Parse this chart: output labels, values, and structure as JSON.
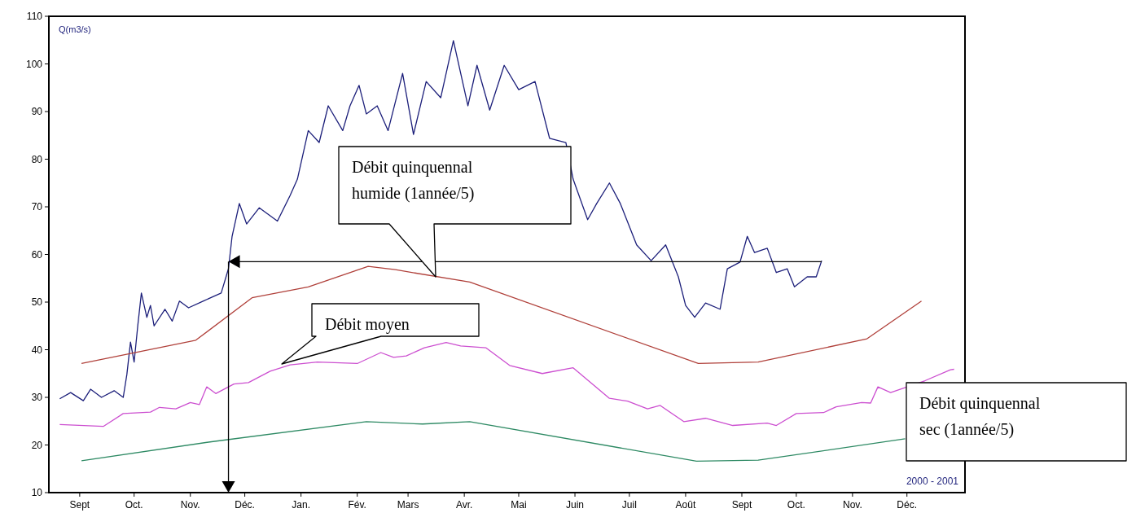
{
  "chart_data": {
    "type": "line",
    "ylabel": "Q(m3/s)",
    "ylim": [
      10,
      110
    ],
    "yticks": [
      10,
      20,
      30,
      40,
      50,
      60,
      70,
      80,
      90,
      100,
      110
    ],
    "xlim": [
      "2000-08-29",
      "2002-01-16"
    ],
    "xticks": [
      {
        "value": "2000-09-15",
        "label": "Sept"
      },
      {
        "value": "2000-10-15",
        "label": "Oct."
      },
      {
        "value": "2000-11-15",
        "label": "Nov."
      },
      {
        "value": "2000-12-15",
        "label": "Déc."
      },
      {
        "value": "2001-01-15",
        "label": "Jan."
      },
      {
        "value": "2001-02-15",
        "label": "Fév."
      },
      {
        "value": "2001-03-15",
        "label": "Mars"
      },
      {
        "value": "2001-04-15",
        "label": "Avr."
      },
      {
        "value": "2001-05-15",
        "label": "Mai"
      },
      {
        "value": "2001-06-15",
        "label": "Juin"
      },
      {
        "value": "2001-07-15",
        "label": "Juil"
      },
      {
        "value": "2001-08-15",
        "label": "Août"
      },
      {
        "value": "2001-09-15",
        "label": "Sept"
      },
      {
        "value": "2001-10-15",
        "label": "Oct."
      },
      {
        "value": "2001-11-15",
        "label": "Nov."
      },
      {
        "value": "2001-12-15",
        "label": "Déc."
      }
    ],
    "grid": false,
    "series": [
      {
        "name": "2000 - 2001",
        "color": "#1c1f7a",
        "x": [
          "2000-09-04",
          "2000-09-10",
          "2000-09-17",
          "2000-09-21",
          "2000-09-27",
          "2000-10-04",
          "2000-10-09",
          "2000-10-11",
          "2000-10-13",
          "2000-10-15",
          "2000-10-17",
          "2000-10-19",
          "2000-10-22",
          "2000-10-24",
          "2000-10-26",
          "2000-11-01",
          "2000-11-05",
          "2000-11-09",
          "2000-11-14",
          "2000-11-22",
          "2000-12-02",
          "2000-12-06",
          "2000-12-08",
          "2000-12-12",
          "2000-12-16",
          "2000-12-23",
          "2001-01-02",
          "2001-01-09",
          "2001-01-13",
          "2001-01-19",
          "2001-01-25",
          "2001-01-30",
          "2001-02-07",
          "2001-02-11",
          "2001-02-16",
          "2001-02-20",
          "2001-02-26",
          "2001-03-04",
          "2001-03-12",
          "2001-03-18",
          "2001-03-25",
          "2001-04-02",
          "2001-04-09",
          "2001-04-17",
          "2001-04-22",
          "2001-04-29",
          "2001-05-07",
          "2001-05-15",
          "2001-05-24",
          "2001-06-01",
          "2001-06-10",
          "2001-06-14",
          "2001-06-22",
          "2001-06-27",
          "2001-07-04",
          "2001-07-10",
          "2001-07-19",
          "2001-07-27",
          "2001-08-04",
          "2001-08-11",
          "2001-08-15",
          "2001-08-20",
          "2001-08-26",
          "2001-09-03",
          "2001-09-07",
          "2001-09-14",
          "2001-09-18",
          "2001-09-22",
          "2001-09-29",
          "2001-10-04",
          "2001-10-10",
          "2001-10-14",
          "2001-10-21",
          "2001-10-26",
          "2001-10-29"
        ],
        "values": [
          29.7,
          31,
          29.3,
          31.7,
          30,
          31.4,
          30,
          34.8,
          41.6,
          37.4,
          45,
          51.9,
          46.8,
          49.3,
          45,
          48.5,
          46,
          50.2,
          48.8,
          50.2,
          51.9,
          57,
          63.8,
          70.7,
          66.4,
          69.8,
          67,
          72.4,
          75.8,
          86,
          83.5,
          91.2,
          86,
          91.2,
          95.5,
          89.5,
          91.2,
          86,
          98,
          85.2,
          96.3,
          92.9,
          104.9,
          91.2,
          99.7,
          90.3,
          99.7,
          94.6,
          96.3,
          84.4,
          83.5,
          75.8,
          67.3,
          70.7,
          75,
          70.7,
          62,
          58.7,
          62,
          55.3,
          49.3,
          46.8,
          49.8,
          48.5,
          57,
          58.4,
          63.8,
          60.4,
          61.3,
          56.2,
          57,
          53.2,
          55.3,
          55.3,
          58.7
        ]
      },
      {
        "color": "#b0403a",
        "x": [
          "2000-09-16",
          "2000-11-18",
          "2000-12-19",
          "2001-01-19",
          "2001-02-21",
          "2001-03-08",
          "2001-04-18",
          "2001-08-22",
          "2001-09-24",
          "2001-11-23",
          "2001-12-23"
        ],
        "values": [
          37.1,
          42,
          50.9,
          53.2,
          57.5,
          56.8,
          54.2,
          37.1,
          37.4,
          42.3,
          50.2
        ]
      },
      {
        "color": "#cc4fd0",
        "x": [
          "2000-09-04",
          "2000-09-28",
          "2000-10-09",
          "2000-10-24",
          "2000-10-29",
          "2000-11-07",
          "2000-11-15",
          "2000-11-20",
          "2000-11-24",
          "2000-11-29",
          "2000-12-09",
          "2000-12-17",
          "2000-12-29",
          "2001-01-09",
          "2001-01-24",
          "2001-02-15",
          "2001-02-28",
          "2001-03-07",
          "2001-03-14",
          "2001-03-24",
          "2001-04-05",
          "2001-04-13",
          "2001-04-27",
          "2001-05-10",
          "2001-05-28",
          "2001-06-14",
          "2001-07-04",
          "2001-07-14",
          "2001-07-25",
          "2001-08-01",
          "2001-08-14",
          "2001-08-26",
          "2001-09-10",
          "2001-09-29",
          "2001-10-04",
          "2001-10-15",
          "2001-10-30",
          "2001-11-06",
          "2001-11-20",
          "2001-11-25",
          "2001-11-29",
          "2001-12-06",
          "2001-12-25",
          "2002-01-08",
          "2002-01-10"
        ],
        "values": [
          24.3,
          23.9,
          26.6,
          26.9,
          27.9,
          27.6,
          28.9,
          28.5,
          32.2,
          30.8,
          32.8,
          33.1,
          35.5,
          36.8,
          37.4,
          37.1,
          39.4,
          38.4,
          38.7,
          40.4,
          41.5,
          40.8,
          40.4,
          36.7,
          35,
          36.2,
          29.8,
          29.2,
          27.6,
          28.3,
          24.9,
          25.6,
          24.1,
          24.6,
          24.1,
          26.6,
          26.8,
          28,
          28.9,
          28.8,
          32.2,
          31,
          33.5,
          35.8,
          35.9
        ]
      },
      {
        "color": "#2e8a64",
        "x": [
          "2000-09-16",
          "2000-11-25",
          "2001-02-20",
          "2001-03-23",
          "2001-04-18",
          "2001-08-21",
          "2001-09-24",
          "2001-12-14"
        ],
        "values": [
          16.7,
          20.6,
          24.9,
          24.4,
          24.9,
          16.6,
          16.8,
          21.3
        ]
      }
    ],
    "ref_lines": [
      {
        "axis": "y",
        "value": 58.5,
        "color": "#000000"
      },
      {
        "axis": "x",
        "value": "2000-12-06",
        "color": "#000000"
      }
    ],
    "annotations": [
      "Débit quinquennal humide (1année/5)",
      "Débit moyen",
      "Débit quinquennal sec (1année/5)"
    ]
  }
}
